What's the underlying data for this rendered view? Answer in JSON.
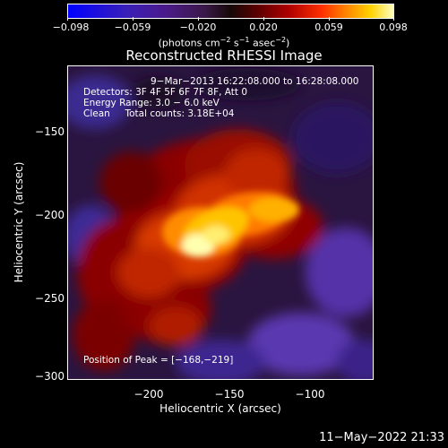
{
  "colorbar": {
    "ticks": [
      "−0.098",
      "−0.059",
      "−0.020",
      "0.020",
      "0.059",
      "0.098"
    ],
    "units_prefix": "(photons cm",
    "units_exp1": "−2",
    "units_mid": " s",
    "units_exp2": "−1",
    "units_mid2": " asec",
    "units_exp3": "−2",
    "units_suffix": ")"
  },
  "title": "Reconstructed RHESSI Image",
  "info": {
    "time": "9−Mar−2013 16:22:08.000 to 16:28:08.000",
    "detectors": "Detectors: 3F 4F 5F 6F 7F 8F, Att 0",
    "energy": "Energy Range: 3.0 − 6.0 keV",
    "clean": "Clean     Total counts: 3.18E+04",
    "peak": "Position of Peak = [−168,−219]"
  },
  "axes": {
    "xlabel": "Heliocentric X (arcsec)",
    "ylabel": "Heliocentric Y (arcsec)",
    "xticks": [
      "−200",
      "−150",
      "−100"
    ],
    "yticks": [
      "−150",
      "−200",
      "−250",
      "−300"
    ]
  },
  "footer": {
    "timestamp": "11−May−2022 21:33"
  },
  "colors": {
    "background": "#000000",
    "hot_core": "#ffffc0",
    "cool_bg": "#2a1540"
  }
}
